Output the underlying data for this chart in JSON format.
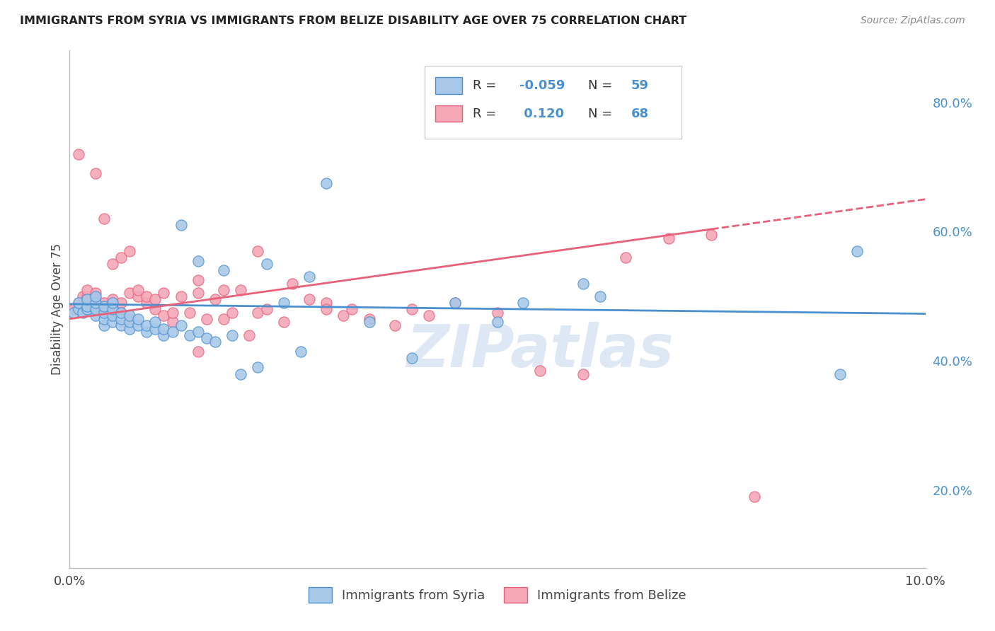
{
  "title": "IMMIGRANTS FROM SYRIA VS IMMIGRANTS FROM BELIZE DISABILITY AGE OVER 75 CORRELATION CHART",
  "source": "Source: ZipAtlas.com",
  "ylabel": "Disability Age Over 75",
  "xlim": [
    0.0,
    0.1
  ],
  "ylim": [
    0.08,
    0.88
  ],
  "y_ticks_right": [
    0.2,
    0.4,
    0.6,
    0.8
  ],
  "y_tick_labels_right": [
    "20.0%",
    "40.0%",
    "60.0%",
    "80.0%"
  ],
  "legend_R_syria": "-0.059",
  "legend_N_syria": "59",
  "legend_R_belize": "0.120",
  "legend_N_belize": "68",
  "syria_color": "#a8c8e8",
  "belize_color": "#f4a8b8",
  "syria_line_color": "#4a90d0",
  "belize_line_color": "#e8607a",
  "watermark": "ZIPatlas",
  "watermark_color": "#d0dff0",
  "background_color": "#ffffff",
  "grid_color": "#d8d8d8",
  "syria_x": [
    0.0005,
    0.001,
    0.001,
    0.0015,
    0.002,
    0.002,
    0.002,
    0.003,
    0.003,
    0.003,
    0.003,
    0.004,
    0.004,
    0.004,
    0.004,
    0.005,
    0.005,
    0.005,
    0.005,
    0.006,
    0.006,
    0.006,
    0.007,
    0.007,
    0.007,
    0.008,
    0.008,
    0.009,
    0.009,
    0.01,
    0.01,
    0.011,
    0.011,
    0.012,
    0.013,
    0.013,
    0.014,
    0.015,
    0.015,
    0.016,
    0.017,
    0.018,
    0.019,
    0.02,
    0.022,
    0.023,
    0.025,
    0.027,
    0.028,
    0.03,
    0.035,
    0.04,
    0.045,
    0.05,
    0.053,
    0.06,
    0.062,
    0.09,
    0.092
  ],
  "syria_y": [
    0.475,
    0.48,
    0.49,
    0.475,
    0.48,
    0.485,
    0.495,
    0.47,
    0.48,
    0.49,
    0.5,
    0.455,
    0.465,
    0.475,
    0.485,
    0.46,
    0.47,
    0.48,
    0.49,
    0.455,
    0.465,
    0.475,
    0.45,
    0.46,
    0.47,
    0.455,
    0.465,
    0.445,
    0.455,
    0.45,
    0.46,
    0.44,
    0.45,
    0.445,
    0.455,
    0.61,
    0.44,
    0.445,
    0.555,
    0.435,
    0.43,
    0.54,
    0.44,
    0.38,
    0.39,
    0.55,
    0.49,
    0.415,
    0.53,
    0.675,
    0.46,
    0.405,
    0.49,
    0.46,
    0.49,
    0.52,
    0.5,
    0.38,
    0.57
  ],
  "belize_x": [
    0.0005,
    0.001,
    0.001,
    0.0015,
    0.002,
    0.002,
    0.002,
    0.003,
    0.003,
    0.003,
    0.003,
    0.004,
    0.004,
    0.004,
    0.005,
    0.005,
    0.005,
    0.005,
    0.006,
    0.006,
    0.006,
    0.007,
    0.007,
    0.007,
    0.008,
    0.008,
    0.009,
    0.009,
    0.01,
    0.01,
    0.011,
    0.011,
    0.012,
    0.012,
    0.013,
    0.014,
    0.015,
    0.015,
    0.016,
    0.017,
    0.018,
    0.019,
    0.02,
    0.021,
    0.022,
    0.023,
    0.025,
    0.026,
    0.028,
    0.03,
    0.032,
    0.033,
    0.035,
    0.038,
    0.04,
    0.042,
    0.045,
    0.05,
    0.055,
    0.06,
    0.065,
    0.07,
    0.075,
    0.08,
    0.03,
    0.015,
    0.018,
    0.022
  ],
  "belize_y": [
    0.48,
    0.49,
    0.72,
    0.5,
    0.49,
    0.5,
    0.51,
    0.485,
    0.495,
    0.69,
    0.505,
    0.48,
    0.62,
    0.49,
    0.475,
    0.55,
    0.485,
    0.495,
    0.475,
    0.56,
    0.49,
    0.505,
    0.465,
    0.57,
    0.5,
    0.51,
    0.49,
    0.5,
    0.48,
    0.495,
    0.47,
    0.505,
    0.46,
    0.475,
    0.5,
    0.475,
    0.505,
    0.415,
    0.465,
    0.495,
    0.465,
    0.475,
    0.51,
    0.44,
    0.475,
    0.48,
    0.46,
    0.52,
    0.495,
    0.49,
    0.47,
    0.48,
    0.465,
    0.455,
    0.48,
    0.47,
    0.49,
    0.475,
    0.385,
    0.38,
    0.56,
    0.59,
    0.595,
    0.19,
    0.48,
    0.525,
    0.51,
    0.57
  ]
}
